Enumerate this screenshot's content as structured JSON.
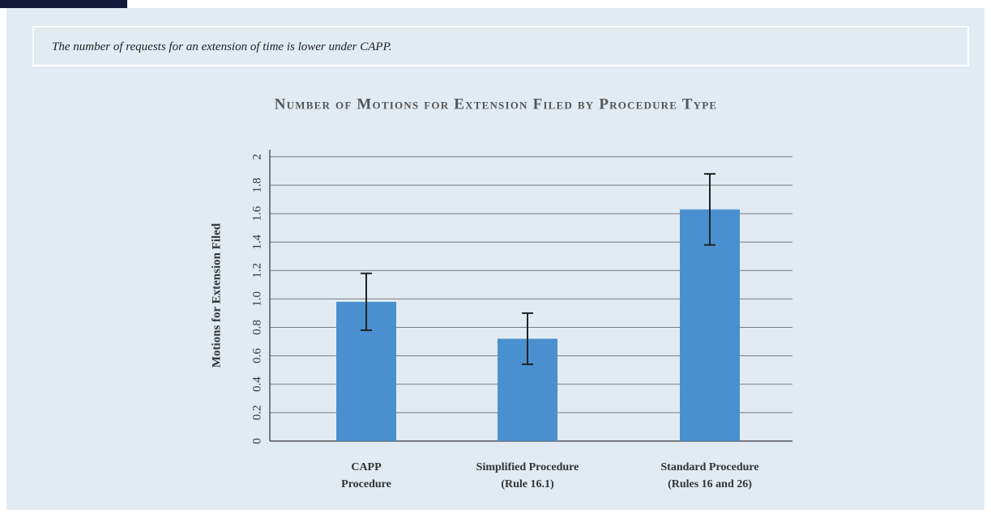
{
  "caption": "The number of requests for an extension of time is lower under CAPP.",
  "chart_data": {
    "type": "bar",
    "title": "Number of Motions for Extension Filed by Procedure Type",
    "y_label": "Motions for Extension Filed",
    "categories": [
      [
        "CAPP",
        "Procedure"
      ],
      [
        "Simplified Procedure",
        "(Rule 16.1)"
      ],
      [
        "Standard Procedure",
        "(Rules 16 and 26)"
      ]
    ],
    "values": [
      0.98,
      0.72,
      1.63
    ],
    "errors": [
      0.2,
      0.18,
      0.25
    ],
    "color": "#4a90d0",
    "ylim": [
      0,
      2.05
    ],
    "yticks": [
      0,
      0.2,
      0.4,
      0.6,
      0.8,
      {
        "value": 1,
        "label": "1.0"
      },
      1.2,
      1.4,
      1.6,
      1.8,
      2
    ],
    "grid": true
  }
}
